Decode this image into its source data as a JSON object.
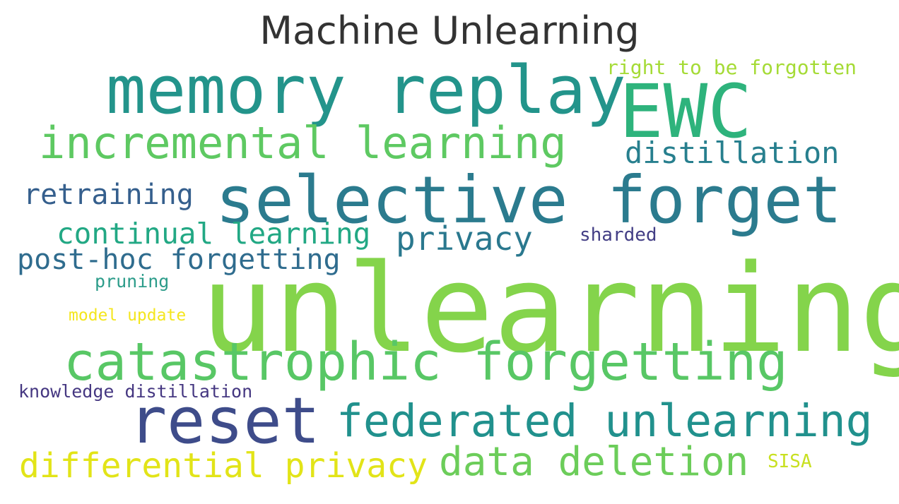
{
  "title": "Machine Unlearning",
  "words": [
    {
      "text": "unlearning",
      "color": "#84d44b"
    },
    {
      "text": "selective forget",
      "color": "#2b7b8e"
    },
    {
      "text": "memory replay",
      "color": "#23948b"
    },
    {
      "text": "EWC",
      "color": "#2eb37c"
    },
    {
      "text": "catastrophic forgetting",
      "color": "#58c765"
    },
    {
      "text": "reset",
      "color": "#3e4c8a"
    },
    {
      "text": "federated unlearning",
      "color": "#21918d"
    },
    {
      "text": "incremental learning",
      "color": "#5ec962"
    },
    {
      "text": "differential privacy",
      "color": "#e2e418"
    },
    {
      "text": "data deletion",
      "color": "#6ccd5a"
    },
    {
      "text": "continual learning",
      "color": "#22a884"
    },
    {
      "text": "privacy",
      "color": "#2a788e"
    },
    {
      "text": "distillation",
      "color": "#277f8e"
    },
    {
      "text": "retraining",
      "color": "#355f8d"
    },
    {
      "text": "post-hoc forgetting",
      "color": "#2f6c8e"
    },
    {
      "text": "right to be forgotten",
      "color": "#a5db36"
    },
    {
      "text": "sharded",
      "color": "#433e85"
    },
    {
      "text": "pruning",
      "color": "#2c9c8a"
    },
    {
      "text": "model update",
      "color": "#f4e61e"
    },
    {
      "text": "knowledge distillation",
      "color": "#453781"
    },
    {
      "text": "SISA",
      "color": "#c8e020"
    }
  ]
}
